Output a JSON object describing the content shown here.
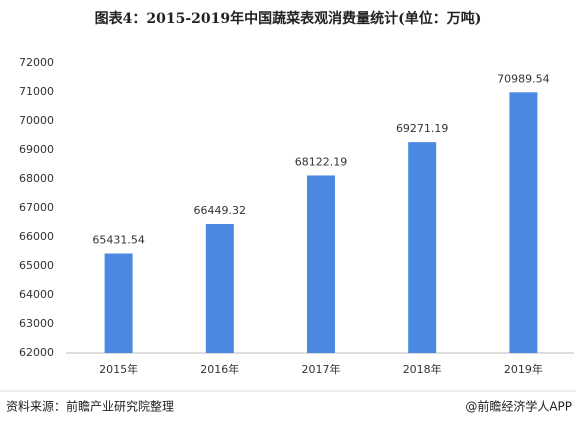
{
  "chart_data": {
    "type": "bar",
    "title": "图表4：2015-2019年中国蔬菜表观消费量统计(单位：万吨)",
    "categories": [
      "2015年",
      "2016年",
      "2017年",
      "2018年",
      "2019年"
    ],
    "values": [
      65431.54,
      66449.32,
      68122.19,
      69271.19,
      70989.54
    ],
    "color": "#4a88e2",
    "ylim": [
      62000,
      72000
    ],
    "yticks": [
      62000,
      63000,
      64000,
      65000,
      66000,
      67000,
      68000,
      69000,
      70000,
      71000,
      72000
    ],
    "grid": false,
    "source": "资料来源：前瞻产业研究院整理",
    "credit": "@前瞻经济学人APP"
  }
}
